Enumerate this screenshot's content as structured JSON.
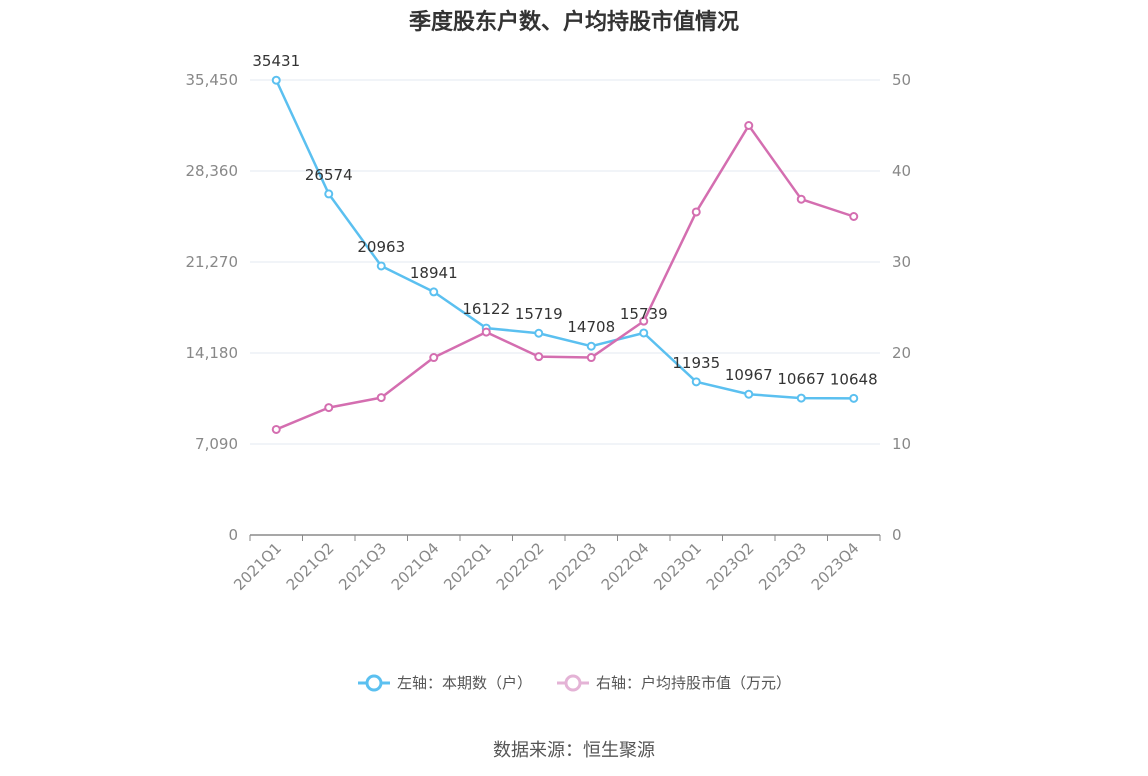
{
  "chart_data": {
    "type": "line",
    "title": "季度股东户数、户均持股市值情况",
    "categories": [
      "2021Q1",
      "2021Q2",
      "2021Q3",
      "2021Q4",
      "2022Q1",
      "2022Q2",
      "2022Q3",
      "2022Q4",
      "2023Q1",
      "2023Q2",
      "2023Q3",
      "2023Q4"
    ],
    "left_axis": {
      "min": 0,
      "max": 35450,
      "ticks": [
        "0",
        "7,090",
        "14,180",
        "21,270",
        "28,360",
        "35,450"
      ]
    },
    "right_axis": {
      "min": 0,
      "max": 50,
      "ticks": [
        "0",
        "10",
        "20",
        "30",
        "40",
        "50"
      ]
    },
    "series": [
      {
        "name": "左轴：本期数（户）",
        "axis": "left",
        "color": "#5bc0f0",
        "values": [
          35431,
          26574,
          20963,
          18941,
          16122,
          15719,
          14708,
          15739,
          11935,
          10967,
          10667,
          10648
        ],
        "labels": [
          "35431",
          "26574",
          "20963",
          "18941",
          "16122",
          "15719",
          "14708",
          "15739",
          "11935",
          "10967",
          "10667",
          "10648"
        ]
      },
      {
        "name": "右轴：户均持股市值（万元）",
        "axis": "right",
        "color": "#d46eb0",
        "values": [
          11.6,
          14.0,
          15.1,
          19.5,
          22.3,
          19.6,
          19.5,
          23.5,
          35.5,
          45.0,
          36.9,
          35.0
        ]
      }
    ],
    "grid": true
  },
  "source": "数据来源：恒生聚源"
}
